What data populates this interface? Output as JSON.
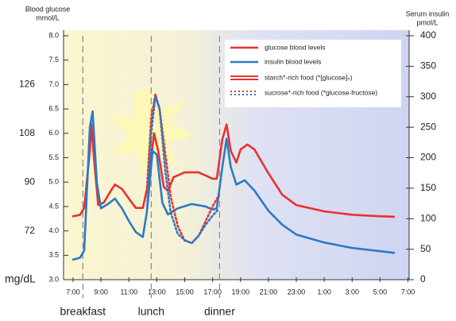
{
  "chart_data": {
    "type": "line",
    "y_title": "Blood glucose",
    "y_unit": "mmol/L",
    "y2_title": "Serum insulin",
    "y2_unit": "pmol/L",
    "alt_unit": "mg/dL",
    "xlim": [
      0,
      24
    ],
    "xticks": [
      {
        "value": 0,
        "label": "7:00"
      },
      {
        "value": 2,
        "label": "9:00"
      },
      {
        "value": 4,
        "label": "11:00"
      },
      {
        "value": 6,
        "label": "13:00"
      },
      {
        "value": 8,
        "label": "15:00"
      },
      {
        "value": 10,
        "label": "17:00"
      },
      {
        "value": 12,
        "label": "19:00"
      },
      {
        "value": 14,
        "label": "21:00"
      },
      {
        "value": 16,
        "label": "23:00"
      },
      {
        "value": 18,
        "label": "1:00"
      },
      {
        "value": 20,
        "label": "3:00"
      },
      {
        "value": 22,
        "label": "5:00"
      },
      {
        "value": 24,
        "label": "7:00"
      }
    ],
    "ylim": [
      3,
      8
    ],
    "yticks": [
      {
        "value": 3,
        "label": "3.0"
      },
      {
        "value": 3.5,
        "label": "3.5"
      },
      {
        "value": 4,
        "label": "4.0"
      },
      {
        "value": 4.5,
        "label": "4.5"
      },
      {
        "value": 5,
        "label": "5.0"
      },
      {
        "value": 5.5,
        "label": "5.5"
      },
      {
        "value": 6,
        "label": "6.0"
      },
      {
        "value": 6.5,
        "label": "6.5"
      },
      {
        "value": 7,
        "label": "7.0"
      },
      {
        "value": 7.5,
        "label": "7.5"
      },
      {
        "value": 8,
        "label": "8.0"
      }
    ],
    "alt_ticks": [
      {
        "value": 4,
        "label": "72"
      },
      {
        "value": 5,
        "label": "90"
      },
      {
        "value": 6,
        "label": "108"
      },
      {
        "value": 7,
        "label": "126"
      }
    ],
    "y2lim": [
      0,
      400
    ],
    "y2ticks": [
      0,
      50,
      100,
      150,
      200,
      250,
      300,
      350,
      400
    ],
    "annotations": [
      {
        "text": "breakfast",
        "x": 0.7
      },
      {
        "text": "lunch",
        "x": 5.6
      },
      {
        "text": "dinner",
        "x": 10.5
      }
    ],
    "series": [
      {
        "name": "glucose blood levels",
        "color": "#e8312f",
        "dash": false,
        "x": [
          0,
          0.5,
          0.8,
          1.2,
          1.3,
          1.5,
          1.8,
          2.2,
          2.7,
          3.0,
          3.5,
          4.0,
          4.5,
          5.0,
          5.4,
          5.8,
          6.1,
          6.5,
          6.8,
          7.2,
          8,
          9,
          10,
          10.3,
          10.7,
          11,
          11.3,
          11.7,
          12,
          12.5,
          13,
          14,
          15,
          16,
          18,
          20,
          22,
          23
        ],
        "values": [
          4.3,
          4.33,
          4.47,
          5.64,
          6.2,
          5.48,
          4.53,
          4.58,
          4.82,
          4.95,
          4.86,
          4.66,
          4.47,
          4.47,
          4.99,
          6.0,
          5.64,
          4.9,
          4.82,
          5.1,
          5.2,
          5.2,
          5.07,
          5.07,
          5.88,
          6.18,
          5.64,
          5.4,
          5.67,
          5.77,
          5.67,
          5.18,
          4.74,
          4.53,
          4.4,
          4.33,
          4.3,
          4.29
        ]
      },
      {
        "name": "insulin blood levels",
        "color": "#2a7ac8",
        "dash": false,
        "axis": "y2",
        "x": [
          0,
          0.5,
          0.8,
          1.2,
          1.4,
          1.7,
          2.0,
          2.5,
          3.0,
          3.5,
          4.0,
          4.5,
          5.0,
          5.3,
          5.7,
          6.0,
          6.4,
          6.8,
          7.5,
          8.5,
          9.5,
          10,
          10.3,
          10.7,
          11,
          11.3,
          11.7,
          12.3,
          13,
          14,
          15,
          16,
          18,
          20,
          23
        ],
        "values": [
          33,
          36,
          48,
          250,
          276,
          159,
          117,
          124,
          133,
          117,
          96,
          78,
          70,
          113,
          211,
          205,
          126,
          107,
          117,
          124,
          120,
          115,
          117,
          185,
          231,
          185,
          156,
          163,
          146,
          113,
          90,
          74,
          61,
          52,
          44
        ]
      },
      {
        "color": "#e8312f",
        "dash": true,
        "x": [
          5.3,
          5.6,
          5.9,
          6.2,
          6.6,
          7.0,
          7.5,
          8.0,
          8.5,
          9.0,
          9.5,
          10.0,
          10.4
        ],
        "values": [
          4.9,
          6.3,
          6.8,
          6.5,
          5.6,
          4.7,
          4.1,
          3.8,
          3.75,
          3.9,
          4.2,
          4.5,
          4.7
        ]
      },
      {
        "color": "#2a7ac8",
        "dash": true,
        "axis": "y2",
        "x": [
          5.3,
          5.6,
          5.9,
          6.2,
          6.6,
          7.0,
          7.5,
          8.0,
          8.5,
          9.0,
          9.5,
          10.0,
          10.4
        ],
        "values": [
          115,
          240,
          300,
          280,
          180,
          110,
          75,
          65,
          60,
          72,
          90,
          105,
          115
        ]
      }
    ],
    "style_legend": [
      {
        "label": "starch*-rich food (*[glucose]ₙ)",
        "color": "#e8312f",
        "dash": false
      },
      {
        "label": "sucrose*-rich food (*glucose-fructose)",
        "color": "#2a7ac8",
        "dash": true
      }
    ]
  }
}
